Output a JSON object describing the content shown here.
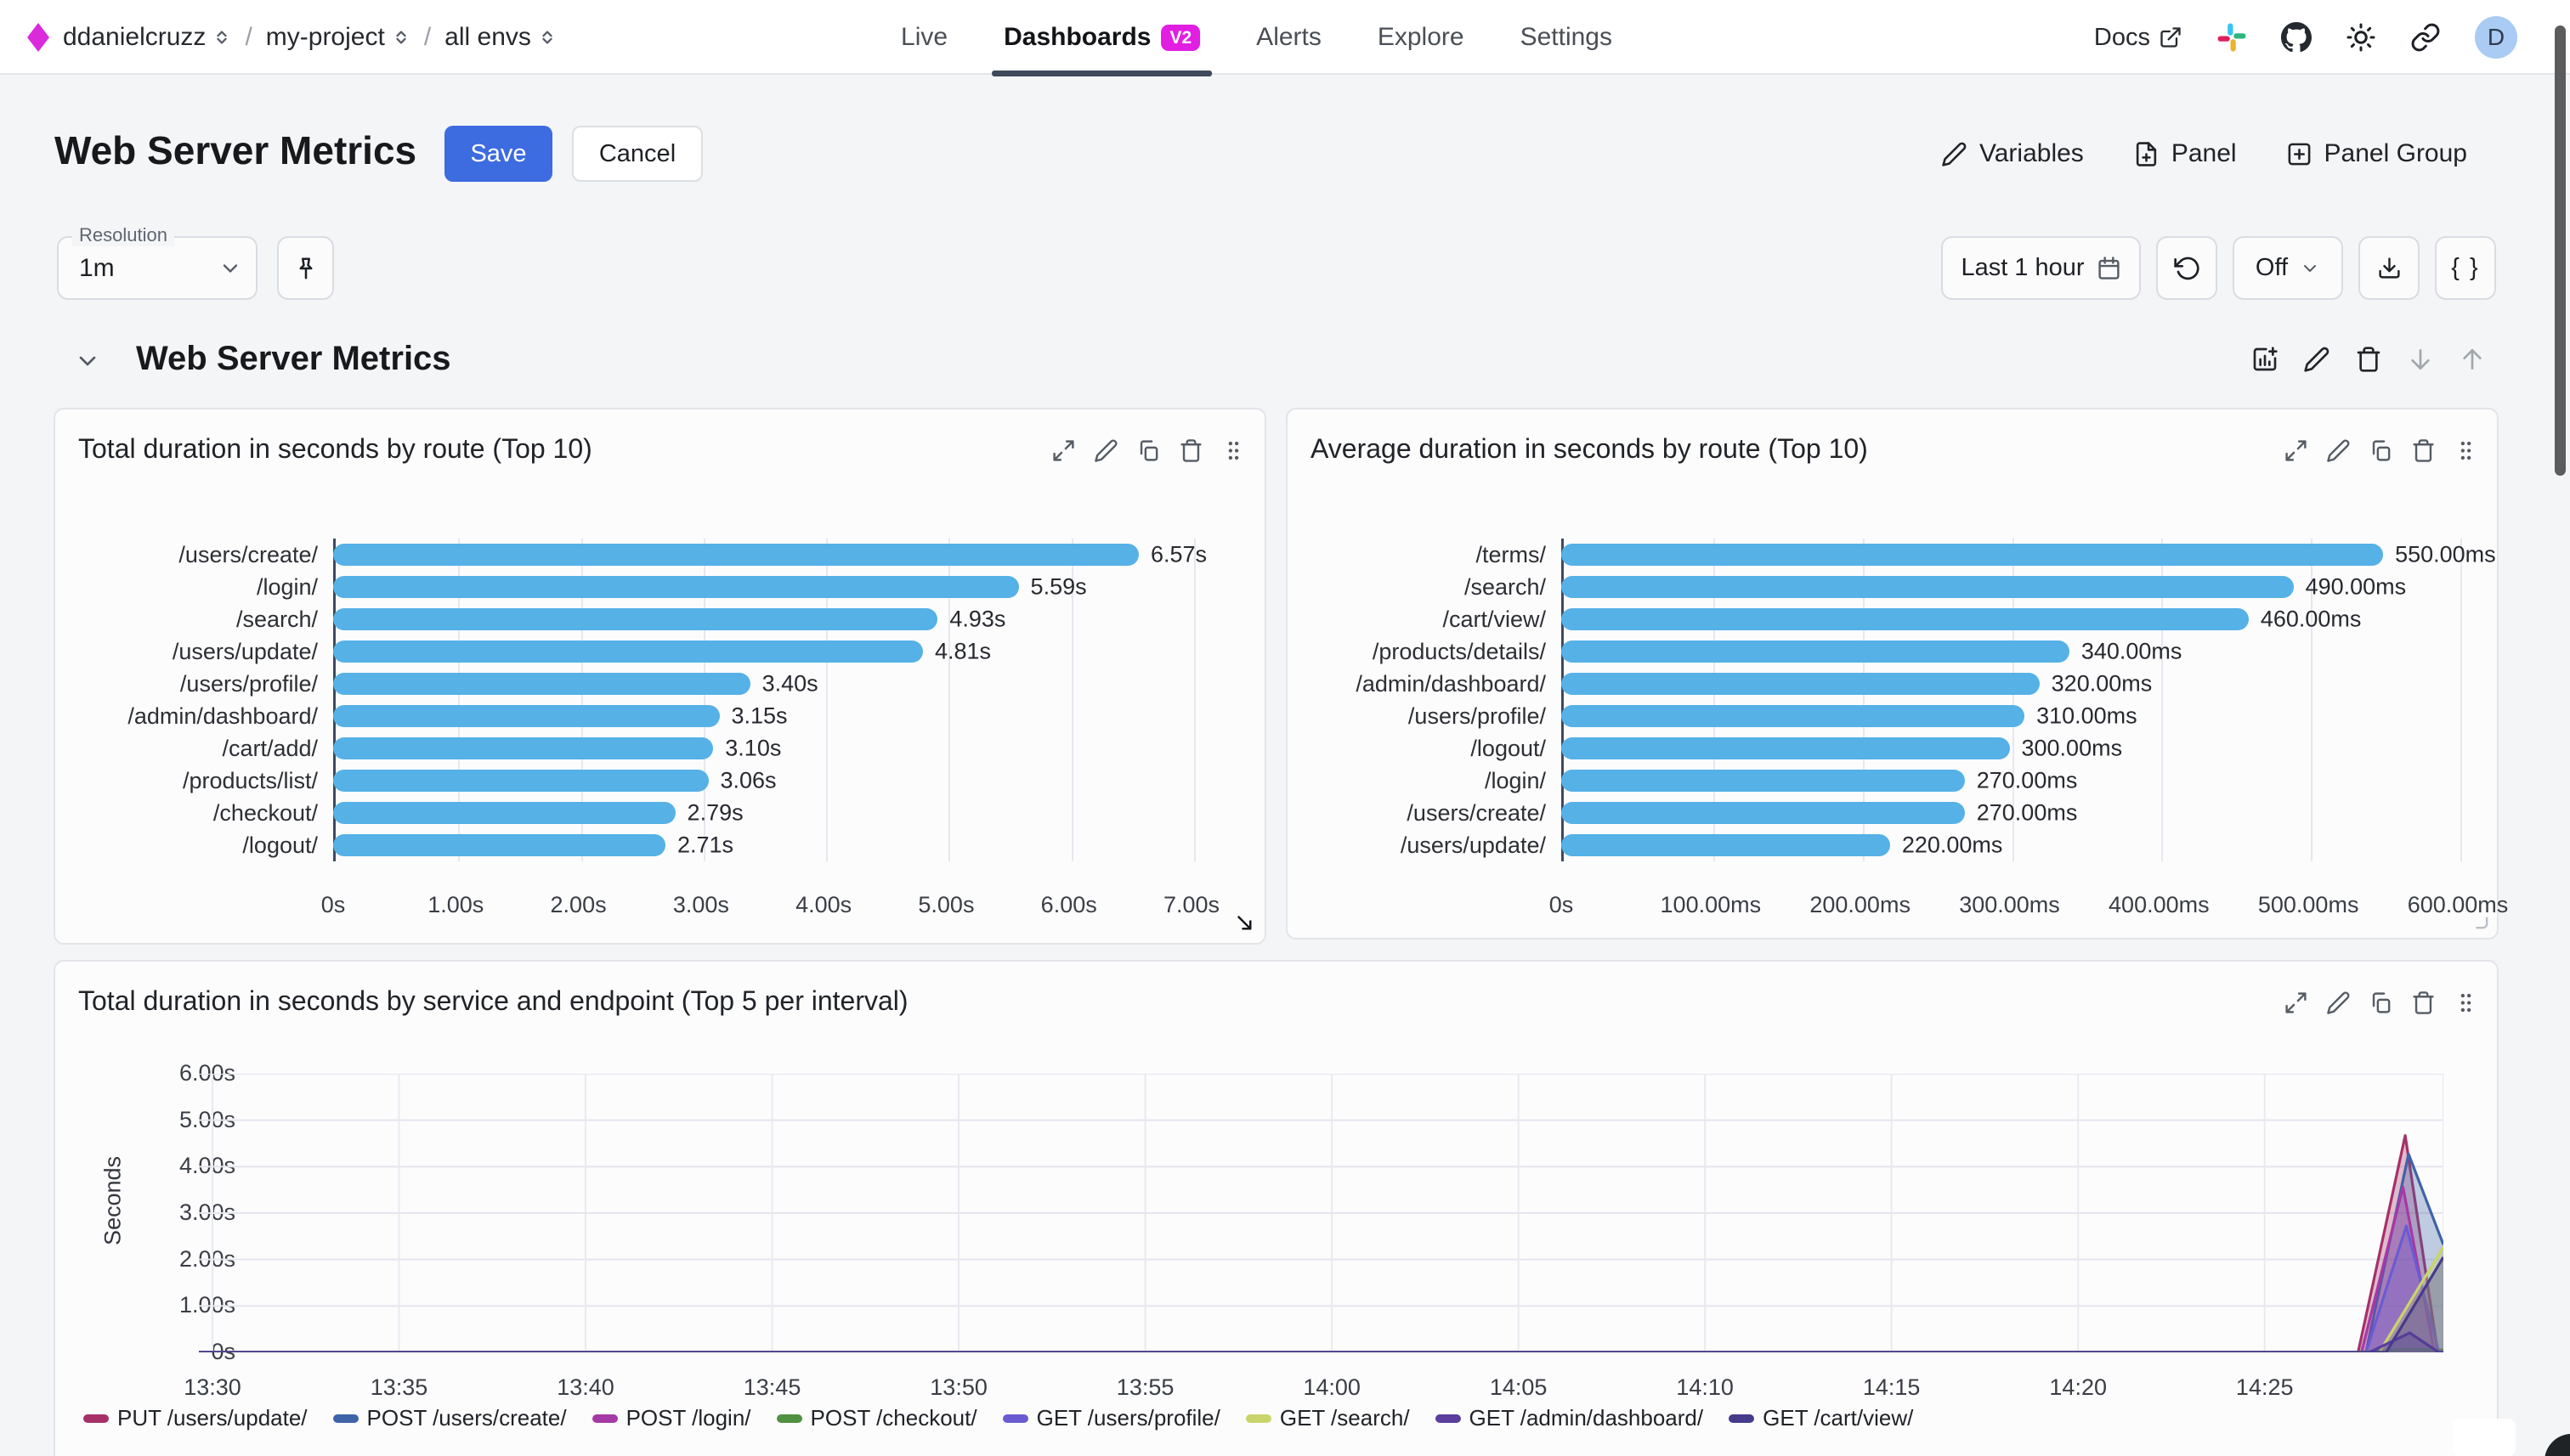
{
  "header": {
    "breadcrumb": [
      "ddanielcruzz",
      "my-project",
      "all envs"
    ],
    "nav": [
      {
        "label": "Live",
        "active": false
      },
      {
        "label": "Dashboards",
        "active": true,
        "badge": "V2"
      },
      {
        "label": "Alerts",
        "active": false
      },
      {
        "label": "Explore",
        "active": false
      },
      {
        "label": "Settings",
        "active": false
      }
    ],
    "docs_label": "Docs",
    "avatar_letter": "D"
  },
  "title_bar": {
    "title": "Web Server Metrics",
    "save_label": "Save",
    "cancel_label": "Cancel",
    "variables_label": "Variables",
    "panel_label": "Panel",
    "panel_group_label": "Panel Group"
  },
  "toolbar": {
    "resolution_label": "Resolution",
    "resolution_value": "1m",
    "time_range": "Last 1 hour",
    "refresh_value": "Off",
    "braces_label": "{ }"
  },
  "section": {
    "title": "Web Server Metrics"
  },
  "colors": {
    "accent_blue": "#3D6BE0",
    "brand_magenta": "#DB2ADB",
    "bar_blue": "#55B1E6",
    "active_tab_underline": "#3E4A5B",
    "avatar_bg": "#A9CBF4"
  },
  "chart_data": [
    {
      "type": "bar",
      "orientation": "horizontal",
      "title": "Total duration in seconds by route (Top 10)",
      "categories": [
        "/users/create/",
        "/login/",
        "/search/",
        "/users/update/",
        "/users/profile/",
        "/admin/dashboard/",
        "/cart/add/",
        "/products/list/",
        "/checkout/",
        "/logout/"
      ],
      "values": [
        6.57,
        5.59,
        4.93,
        4.81,
        3.4,
        3.15,
        3.1,
        3.06,
        2.79,
        2.71
      ],
      "value_labels": [
        "6.57s",
        "5.59s",
        "4.93s",
        "4.81s",
        "3.40s",
        "3.15s",
        "3.10s",
        "3.06s",
        "2.79s",
        "2.71s"
      ],
      "axis_max": 7,
      "ticks": [
        "0s",
        "1.00s",
        "2.00s",
        "3.00s",
        "4.00s",
        "5.00s",
        "6.00s",
        "7.00s"
      ],
      "bar_color": "#55B1E6"
    },
    {
      "type": "bar",
      "orientation": "horizontal",
      "title": "Average duration in seconds by route (Top 10)",
      "categories": [
        "/terms/",
        "/search/",
        "/cart/view/",
        "/products/details/",
        "/admin/dashboard/",
        "/users/profile/",
        "/logout/",
        "/login/",
        "/users/create/",
        "/users/update/"
      ],
      "values": [
        550,
        490,
        460,
        340,
        320,
        310,
        300,
        270,
        270,
        220
      ],
      "value_labels": [
        "550.00ms",
        "490.00ms",
        "460.00ms",
        "340.00ms",
        "320.00ms",
        "310.00ms",
        "300.00ms",
        "270.00ms",
        "270.00ms",
        "220.00ms"
      ],
      "axis_max": 600,
      "ticks": [
        "0s",
        "100.00ms",
        "200.00ms",
        "300.00ms",
        "400.00ms",
        "500.00ms",
        "600.00ms"
      ],
      "bar_color": "#55B1E6"
    },
    {
      "type": "area",
      "title": "Total duration in seconds by service and endpoint (Top 5 per interval)",
      "ylabel": "Seconds",
      "ymax": 6,
      "y_ticks": [
        "0s",
        "1.00s",
        "2.00s",
        "3.00s",
        "4.00s",
        "5.00s",
        "6.00s"
      ],
      "x_ticks": [
        "13:30",
        "13:35",
        "13:40",
        "13:45",
        "13:50",
        "13:55",
        "14:00",
        "14:05",
        "14:10",
        "14:15",
        "14:20",
        "14:25"
      ],
      "x_tick_f": [
        0.00606,
        0.08918,
        0.1723,
        0.25542,
        0.33854,
        0.42166,
        0.50478,
        0.5879,
        0.67102,
        0.75414,
        0.83726,
        0.92038
      ],
      "series": [
        {
          "name": "PUT /users/update/",
          "color": "#A63169",
          "points": [
            [
              0,
              0
            ],
            [
              0.962,
              0
            ],
            [
              0.983,
              4.67
            ],
            [
              0.9975,
              0
            ],
            [
              1,
              0
            ]
          ]
        },
        {
          "name": "POST /users/create/",
          "color": "#3E63A8",
          "points": [
            [
              0,
              0
            ],
            [
              0.9655,
              0
            ],
            [
              0.9845,
              4.27
            ],
            [
              1,
              2.32
            ]
          ]
        },
        {
          "name": "POST /login/",
          "color": "#A539A5",
          "points": [
            [
              0,
              0
            ],
            [
              0.9635,
              0
            ],
            [
              0.982,
              3.56
            ],
            [
              0.996,
              0
            ],
            [
              1,
              0
            ]
          ]
        },
        {
          "name": "POST /checkout/",
          "color": "#4F9140",
          "points": [
            [
              0,
              0
            ],
            [
              0.96,
              0
            ],
            [
              0.985,
              0.07
            ],
            [
              1,
              0.05
            ]
          ]
        },
        {
          "name": "GET /users/profile/",
          "color": "#6A5BD1",
          "points": [
            [
              0,
              0
            ],
            [
              0.9655,
              0
            ],
            [
              0.9835,
              2.72
            ],
            [
              0.998,
              0
            ],
            [
              1,
              0
            ]
          ]
        },
        {
          "name": "GET /search/",
          "color": "#C9D46B",
          "points": [
            [
              0,
              0
            ],
            [
              0.9715,
              0
            ],
            [
              1,
              2.27
            ]
          ]
        },
        {
          "name": "GET /admin/dashboard/",
          "color": "#5B3E9E",
          "points": [
            [
              0,
              0
            ],
            [
              0.967,
              0
            ],
            [
              0.985,
              0.42
            ],
            [
              0.998,
              0
            ],
            [
              1,
              0
            ]
          ]
        },
        {
          "name": "GET /cart/view/",
          "color": "#453B8B",
          "points": [
            [
              0,
              0
            ],
            [
              0.9745,
              0
            ],
            [
              1,
              2.05
            ]
          ]
        }
      ]
    }
  ]
}
